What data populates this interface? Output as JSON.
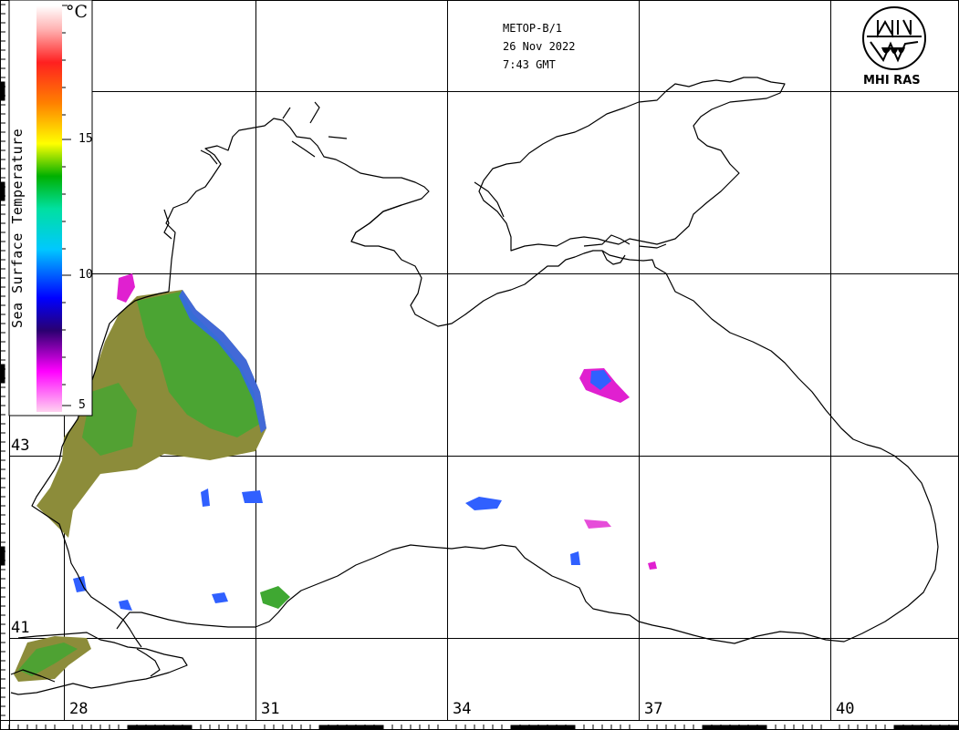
{
  "header": {
    "satellite": "METOP-B/1",
    "date": "26 Nov 2022",
    "time": "7:43 GMT"
  },
  "logo": {
    "text": "MHI RAS",
    "icon": "mhi-ras-logo-icon"
  },
  "legend": {
    "title": "Sea Surface Temperature",
    "unit": "°C",
    "ticks": [
      "15",
      "10",
      "5"
    ],
    "color_stops": [
      "#ffd2f0",
      "#ff00ff",
      "#2a0070",
      "#0000ff",
      "#00c8ff",
      "#00e0a0",
      "#00b000",
      "#ffff00",
      "#ff8000",
      "#ff2020",
      "#ffb0b0",
      "#ffffff"
    ]
  },
  "axes": {
    "longitude_labels": [
      "28",
      "31",
      "34",
      "37",
      "40"
    ],
    "latitude_labels": [
      "43",
      "41"
    ]
  },
  "colors": {
    "coast": "#000000",
    "grid": "#000000",
    "sst_green": "#3fa832",
    "sst_olive": "#8c8c3a",
    "sst_blue": "#3060ff",
    "sst_magenta": "#e020d0"
  }
}
